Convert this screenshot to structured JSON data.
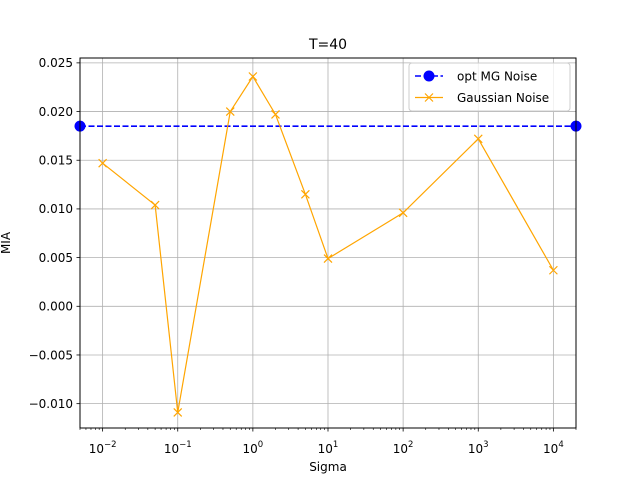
{
  "chart_data": {
    "type": "line",
    "title": "T=40",
    "xlabel": "Sigma",
    "ylabel": "MIA",
    "xscale": "log",
    "xlim": [
      0.005,
      20000
    ],
    "ylim": [
      -0.0125,
      0.0255
    ],
    "grid": true,
    "legend_position": "top-right",
    "x_ticks": [
      {
        "value": 0.01,
        "base": "10",
        "exp": "−2"
      },
      {
        "value": 0.1,
        "base": "10",
        "exp": "−1"
      },
      {
        "value": 1,
        "base": "10",
        "exp": "0"
      },
      {
        "value": 10,
        "base": "10",
        "exp": "1"
      },
      {
        "value": 100,
        "base": "10",
        "exp": "2"
      },
      {
        "value": 1000,
        "base": "10",
        "exp": "3"
      },
      {
        "value": 10000,
        "base": "10",
        "exp": "4"
      }
    ],
    "y_ticks": [
      {
        "value": -0.01,
        "label": "−0.010"
      },
      {
        "value": -0.005,
        "label": "−0.005"
      },
      {
        "value": 0.0,
        "label": "0.000"
      },
      {
        "value": 0.005,
        "label": "0.005"
      },
      {
        "value": 0.01,
        "label": "0.010"
      },
      {
        "value": 0.015,
        "label": "0.015"
      },
      {
        "value": 0.02,
        "label": "0.020"
      },
      {
        "value": 0.025,
        "label": "0.025"
      }
    ],
    "series": [
      {
        "name": "opt MG Noise",
        "color": "#0000ff",
        "line_style": "dashed",
        "marker": "circle",
        "x": [
          0.005,
          20000
        ],
        "y": [
          0.0185,
          0.0185
        ]
      },
      {
        "name": "Gaussian Noise",
        "color": "#ffa500",
        "line_style": "solid",
        "marker": "x",
        "x": [
          0.01,
          0.05,
          0.1,
          0.5,
          1,
          2,
          5,
          10,
          100,
          1000,
          10000
        ],
        "y": [
          0.0147,
          0.0104,
          -0.0109,
          0.02,
          0.0236,
          0.0197,
          0.0115,
          0.0049,
          0.0096,
          0.0172,
          0.0037
        ]
      }
    ]
  }
}
